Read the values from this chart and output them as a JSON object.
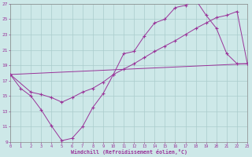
{
  "xlabel": "Windchill (Refroidissement éolien,°C)",
  "bg_color": "#cde8e8",
  "line_color": "#993399",
  "grid_color": "#b0d8d8",
  "xlim": [
    0,
    23
  ],
  "ylim": [
    9,
    27
  ],
  "xticks": [
    0,
    1,
    2,
    3,
    4,
    5,
    6,
    7,
    8,
    9,
    10,
    11,
    12,
    13,
    14,
    15,
    16,
    17,
    18,
    19,
    20,
    21,
    22,
    23
  ],
  "yticks": [
    9,
    11,
    13,
    15,
    17,
    19,
    21,
    23,
    25,
    27
  ],
  "line1_x": [
    0,
    1,
    2,
    3,
    4,
    5,
    6,
    7,
    8,
    9,
    10,
    11,
    12,
    13,
    14,
    15,
    16,
    17,
    18,
    19,
    20,
    21,
    22,
    23
  ],
  "line1_y": [
    17.8,
    16.0,
    15.0,
    13.2,
    11.1,
    9.2,
    9.5,
    11.0,
    13.5,
    15.3,
    17.8,
    20.5,
    20.8,
    22.8,
    24.5,
    25.0,
    26.5,
    26.8,
    27.5,
    25.5,
    23.8,
    20.5,
    19.2,
    19.2
  ],
  "line2_x": [
    0,
    2,
    3,
    4,
    5,
    6,
    7,
    8,
    9,
    10,
    11,
    12,
    13,
    14,
    15,
    16,
    17,
    18,
    19,
    20,
    21,
    22,
    23
  ],
  "line2_y": [
    17.8,
    15.5,
    15.2,
    14.8,
    14.2,
    14.8,
    15.5,
    16.0,
    16.8,
    17.8,
    18.5,
    19.2,
    20.0,
    20.8,
    21.5,
    22.2,
    23.0,
    23.8,
    24.5,
    25.2,
    25.5,
    26.0,
    19.2
  ],
  "line3_x": [
    0,
    23
  ],
  "line3_y": [
    17.8,
    19.2
  ]
}
